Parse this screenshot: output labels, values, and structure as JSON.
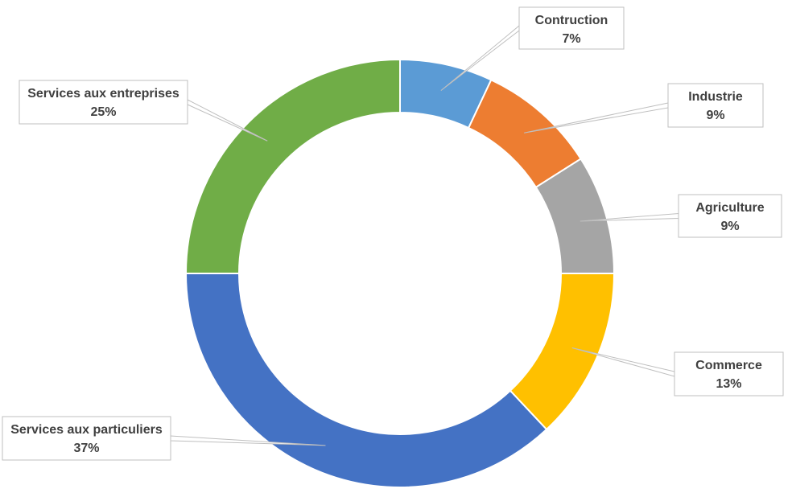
{
  "chart_data": {
    "type": "pie",
    "variant": "donut",
    "title": "",
    "start_angle_deg": 0,
    "direction": "clockwise",
    "legend": "none",
    "slices": [
      {
        "name": "Contruction",
        "value": 7,
        "label": "7%",
        "color": "#5B9BD5"
      },
      {
        "name": "Industrie",
        "value": 9,
        "label": "9%",
        "color": "#ED7D31"
      },
      {
        "name": "Agriculture",
        "value": 9,
        "label": "9%",
        "color": "#A5A5A5"
      },
      {
        "name": "Commerce",
        "value": 13,
        "label": "13%",
        "color": "#FFC000"
      },
      {
        "name": "Services aux particuliers",
        "value": 37,
        "label": "37%",
        "color": "#4472C4"
      },
      {
        "name": "Services aux entreprises",
        "value": 25,
        "label": "25%",
        "color": "#70AD47"
      }
    ]
  }
}
